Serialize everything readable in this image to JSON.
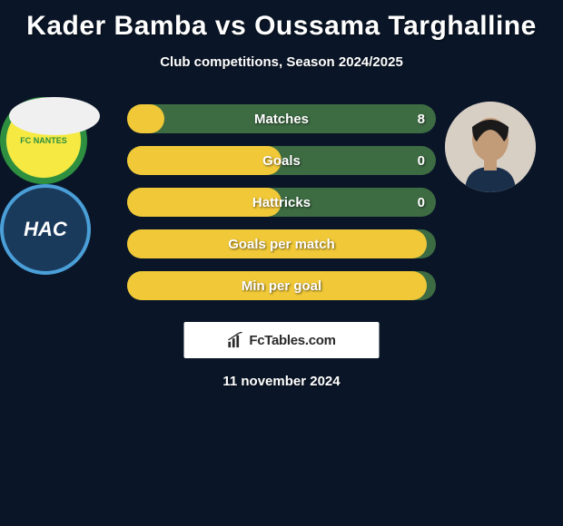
{
  "title": "Kader Bamba vs Oussama Targhalline",
  "subtitle": "Club competitions, Season 2024/2025",
  "date": "11 november 2024",
  "brand": "FcTables.com",
  "player_left": {
    "name": "Kader Bamba",
    "club": "FC Nantes",
    "club_short": "FC NANTES",
    "club_colors": {
      "primary": "#f5e942",
      "secondary": "#2d8f3f"
    }
  },
  "player_right": {
    "name": "Oussama Targhalline",
    "club": "Le Havre AC",
    "club_short": "HAC",
    "club_colors": {
      "primary": "#1a3a5c",
      "accent": "#4a9fd8"
    }
  },
  "bars": {
    "bg_color_left": "#f0c838",
    "bg_color_right": "#3d6b42",
    "rows": [
      {
        "label": "Matches",
        "left_val": "",
        "right_val": "8",
        "fill_pct": 12
      },
      {
        "label": "Goals",
        "left_val": "",
        "right_val": "0",
        "fill_pct": 50
      },
      {
        "label": "Hattricks",
        "left_val": "",
        "right_val": "0",
        "fill_pct": 50
      },
      {
        "label": "Goals per match",
        "left_val": "",
        "right_val": "",
        "fill_pct": 97
      },
      {
        "label": "Min per goal",
        "left_val": "",
        "right_val": "",
        "fill_pct": 97
      }
    ]
  },
  "colors": {
    "background": "#0a1628",
    "text": "#ffffff"
  },
  "fontsize": {
    "title": 30,
    "subtitle": 15,
    "bar_label": 15,
    "date": 15
  }
}
